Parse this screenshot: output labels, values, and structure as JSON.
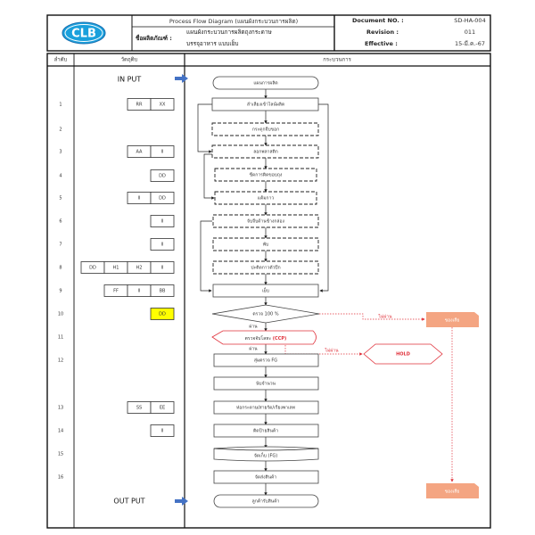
{
  "header": {
    "logo": "CLB",
    "title": "Process Flow Diagram (แผนผังกระบวนการผลิต)",
    "product_label": "ชื่อผลิตภัณฑ์ :",
    "product_name_1": "แผนผังกระบวนการผลิตถุงกระดาษ",
    "product_name_2": "บรรจุอาหาร แบบเย็บ",
    "doc_no_label": "Document NO. :",
    "doc_no": "SD-HA-004",
    "revision_label": "Revision :",
    "revision": "011",
    "effective_label": "Effective :",
    "effective": "15-มี.ค.-67"
  },
  "table": {
    "col_seq": "ลำดับ",
    "col_material": "วัตถุดิบ",
    "col_process": "กระบวนการ",
    "input": "IN PUT",
    "output": "OUT PUT",
    "rows": [
      "1",
      "2",
      "3",
      "4",
      "5",
      "6",
      "7",
      "8",
      "9",
      "10",
      "11",
      "12",
      "13",
      "14",
      "15",
      "16"
    ],
    "materials": {
      "r1": [
        "RR",
        "XX"
      ],
      "r3": [
        "AA",
        "II"
      ],
      "r4": [
        "DD"
      ],
      "r5": [
        "II",
        "DD"
      ],
      "r6": [
        "II"
      ],
      "r7": [
        "II"
      ],
      "r8": [
        "DD",
        "H1",
        "H2",
        "II"
      ],
      "r9": [
        "FF",
        "II",
        "BB"
      ],
      "r10": [
        "DD"
      ],
      "r13": [
        "SS",
        "EE"
      ],
      "r14": [
        "II"
      ]
    },
    "highlight_color": "#ffff00"
  },
  "flow": {
    "start": "แผนการผลิต",
    "s1": "ลำเลียงเข้าไลน์ผลิต",
    "s2": "กระดุกจีบขอก",
    "s3": "ลอกพลาสติก",
    "s4": "ขีดการติดขอบถุง",
    "s5": "แต้มกาว",
    "s6": "จับจีบด้านข้างกล่อง",
    "s7": "พับ",
    "s8": "ปะติดกาวตัวปีก",
    "s9": "เย็บ",
    "check": "ตรวจ 100 %",
    "pass1": "ผ่าน",
    "fail1": "ไม่ผ่าน",
    "ccp_prefix": "ตรวจจับโลหะ ",
    "ccp": "(CCP)",
    "pass2": "ผ่าน",
    "fail2": "ไม่ผ่าน",
    "hold": "HOLD",
    "waste1": "ของเสีย",
    "waste2": "ของเสีย",
    "s12": "สุ่มตรวจ FG",
    "s12b": "นับจำนวน",
    "s13": "ห่อกระดาษ/สายรัด/เรียงพาเลท",
    "s14": "ติดป้ายสินค้า",
    "s15": "จัดเก็บ (FG)",
    "s16": "จัดส่งสินค้า",
    "end": "ลูกค้ารับสินค้า",
    "reject_color": "#e0303a",
    "waste_fill": "#f4a582",
    "arrow_color": "#4472c4"
  }
}
